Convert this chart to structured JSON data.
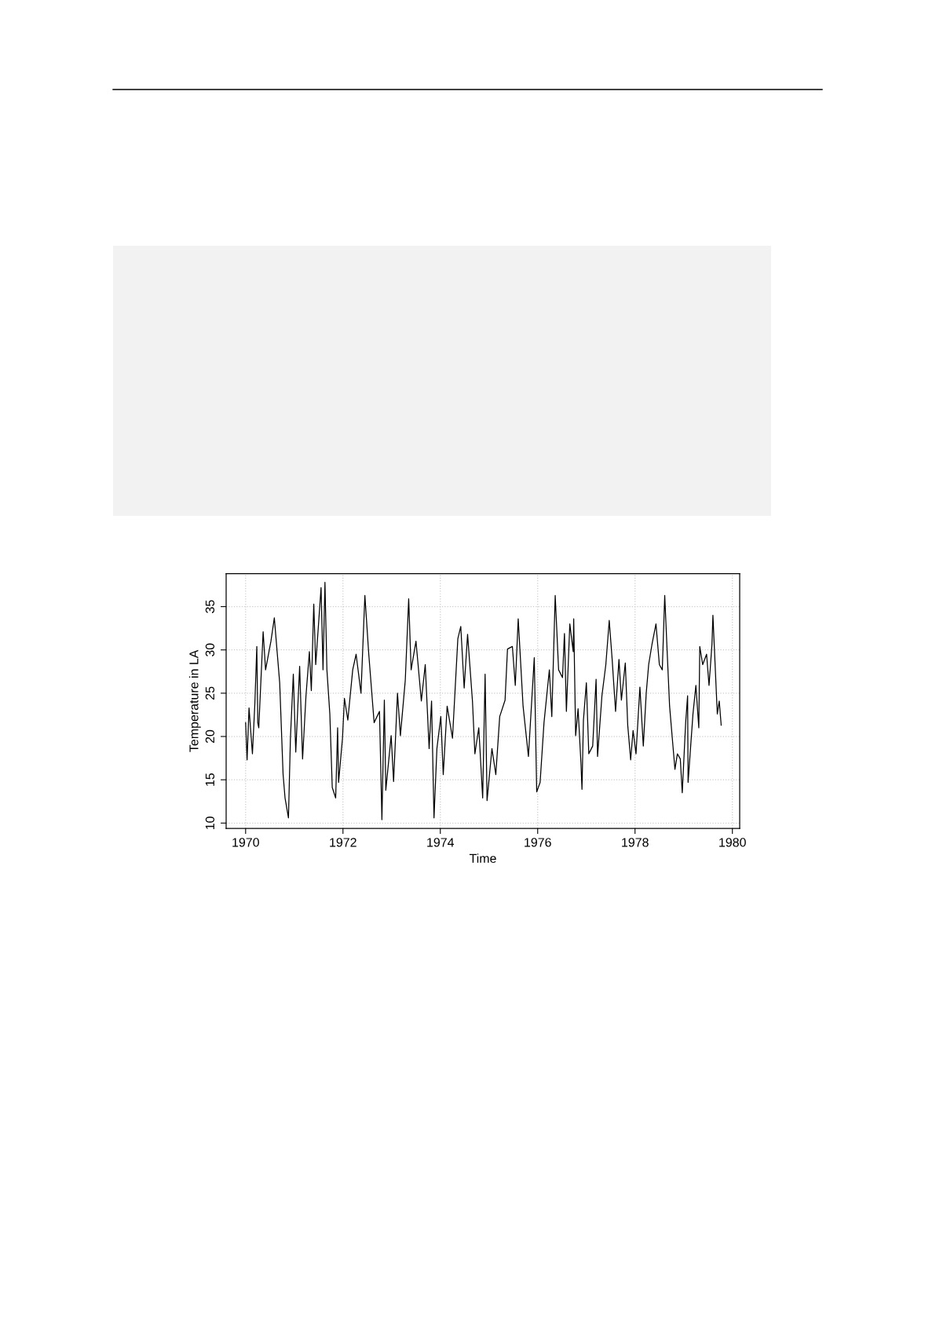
{
  "chart_data": {
    "type": "line",
    "xlabel": "Time",
    "ylabel": "Temperature in LA",
    "xlim": [
      1969.6,
      1980.15
    ],
    "ylim": [
      9.39,
      38.8
    ],
    "xticks": [
      1970,
      1972,
      1974,
      1976,
      1978,
      1980
    ],
    "yticks": [
      10,
      15,
      20,
      25,
      30,
      35
    ],
    "grid": true,
    "legend": false,
    "marker": "none",
    "line_style": "solid",
    "series": [
      {
        "color": "#000000",
        "x": [
          1970.0,
          1970.03,
          1970.07,
          1970.14,
          1970.19,
          1970.23,
          1970.25,
          1970.27,
          1970.36,
          1970.41,
          1970.52,
          1970.59,
          1970.7,
          1970.77,
          1970.81,
          1970.88,
          1970.92,
          1970.98,
          1971.03,
          1971.11,
          1971.17,
          1971.24,
          1971.31,
          1971.35,
          1971.4,
          1971.44,
          1971.55,
          1971.59,
          1971.63,
          1971.67,
          1971.73,
          1971.78,
          1971.85,
          1971.89,
          1971.91,
          1971.99,
          1972.03,
          1972.1,
          1972.2,
          1972.27,
          1972.37,
          1972.45,
          1972.53,
          1972.64,
          1972.75,
          1972.8,
          1972.85,
          1972.88,
          1972.99,
          1973.04,
          1973.12,
          1973.18,
          1973.28,
          1973.35,
          1973.4,
          1973.5,
          1973.61,
          1973.69,
          1973.77,
          1973.82,
          1973.87,
          1973.93,
          1974.01,
          1974.06,
          1974.14,
          1974.25,
          1974.36,
          1974.42,
          1974.49,
          1974.56,
          1974.66,
          1974.71,
          1974.79,
          1974.87,
          1974.92,
          1974.96,
          1975.06,
          1975.14,
          1975.22,
          1975.33,
          1975.38,
          1975.48,
          1975.54,
          1975.6,
          1975.7,
          1975.81,
          1975.93,
          1975.98,
          1976.05,
          1976.13,
          1976.24,
          1976.29,
          1976.36,
          1976.43,
          1976.51,
          1976.55,
          1976.59,
          1976.66,
          1976.73,
          1976.74,
          1976.78,
          1976.83,
          1976.89,
          1976.91,
          1976.94,
          1977.0,
          1977.05,
          1977.13,
          1977.2,
          1977.23,
          1977.32,
          1977.4,
          1977.47,
          1977.53,
          1977.6,
          1977.67,
          1977.72,
          1977.8,
          1977.85,
          1977.91,
          1977.96,
          1978.02,
          1978.1,
          1978.17,
          1978.23,
          1978.28,
          1978.35,
          1978.43,
          1978.5,
          1978.56,
          1978.61,
          1978.66,
          1978.71,
          1978.77,
          1978.82,
          1978.87,
          1978.93,
          1978.97,
          1979.04,
          1979.08,
          1979.09,
          1979.19,
          1979.25,
          1979.31,
          1979.33,
          1979.39,
          1979.47,
          1979.52,
          1979.58,
          1979.6,
          1979.69,
          1979.73,
          1979.77
        ],
        "values": [
          21.6,
          17.3,
          23.3,
          18.0,
          23.8,
          30.4,
          21.6,
          21.0,
          32.1,
          27.7,
          31.0,
          33.7,
          26.2,
          15.6,
          12.9,
          10.6,
          19.7,
          27.2,
          18.2,
          28.1,
          17.4,
          24.7,
          29.8,
          25.3,
          35.3,
          28.3,
          37.2,
          27.7,
          37.8,
          27.7,
          22.6,
          14.1,
          12.9,
          21.0,
          14.7,
          19.8,
          24.4,
          21.9,
          27.7,
          29.5,
          25.0,
          36.3,
          29.5,
          21.6,
          22.9,
          10.4,
          24.2,
          13.8,
          20.1,
          14.8,
          25.0,
          20.1,
          26.5,
          35.9,
          27.7,
          31.0,
          24.1,
          28.3,
          18.6,
          24.1,
          10.6,
          18.6,
          22.3,
          15.6,
          23.5,
          19.8,
          31.3,
          32.7,
          25.6,
          31.8,
          24.1,
          18.0,
          21.0,
          12.9,
          27.2,
          12.6,
          18.6,
          15.6,
          22.3,
          24.2,
          30.1,
          30.4,
          25.9,
          33.6,
          23.5,
          17.7,
          29.1,
          13.6,
          14.7,
          21.6,
          27.7,
          22.3,
          36.3,
          27.7,
          26.8,
          31.9,
          22.9,
          33.0,
          29.8,
          33.6,
          20.1,
          23.2,
          16.8,
          13.9,
          21.9,
          26.2,
          18.0,
          18.9,
          26.6,
          17.7,
          24.7,
          28.3,
          33.4,
          28.9,
          22.9,
          28.9,
          24.2,
          28.5,
          21.3,
          17.3,
          20.7,
          18.0,
          25.7,
          18.9,
          25.0,
          28.3,
          30.7,
          33.0,
          28.3,
          27.7,
          36.3,
          29.8,
          23.5,
          19.5,
          16.2,
          18.0,
          17.4,
          13.5,
          21.6,
          24.7,
          14.7,
          22.6,
          25.9,
          21.0,
          30.4,
          28.3,
          29.5,
          25.9,
          30.6,
          34.0,
          22.6,
          24.1,
          21.3
        ]
      }
    ]
  }
}
